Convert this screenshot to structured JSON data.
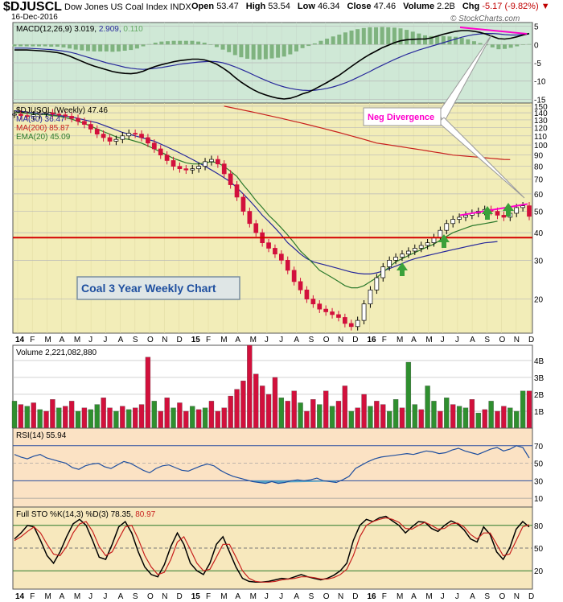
{
  "header": {
    "symbol": "$DJUSCL",
    "name": "Dow Jones US Coal Index INDX",
    "date": "16-Dec-2016",
    "open_label": "Open",
    "open": "53.47",
    "high_label": "High",
    "high": "53.54",
    "low_label": "Low",
    "low": "46.34",
    "close_label": "Close",
    "close": "47.46",
    "volume_label": "Volume",
    "volume": "2.2B",
    "chg_label": "Chg",
    "chg": "-5.17 (-9.82%)",
    "chg_arrow": "▼",
    "copyright": "© StockCharts.com"
  },
  "colors": {
    "macd_bg": "#cfe8d6",
    "price_bg": "#f2edb8",
    "volume_bg": "#ffffff",
    "rsi_bg": "#fbe2c4",
    "sto_bg": "#f7e8bd",
    "up_bar": "#2f8f2f",
    "down_bar": "#d2103c",
    "ma50": "#27289b",
    "ma200": "#c8201d",
    "ema20": "#2d7a2d",
    "divergence": "#ff00cc",
    "support": "#d40000",
    "accent_blue": "#1f4f9f"
  },
  "annotations": {
    "neg_divergence": "Neg Divergence",
    "chart_title": "Coal 3 Year Weekly Chart"
  },
  "chart_data": [
    {
      "type": "line",
      "panel": "macd",
      "label": "MACD(12,26,9) 3.019, 2.909, 0.110",
      "label_parts": [
        "MACD(12,26,9)",
        "3.019",
        "2.909",
        "0.110"
      ],
      "y_ticks": [
        "5",
        "0",
        "-5",
        "-10",
        "-15"
      ],
      "ylim": [
        -16,
        6
      ],
      "series": [
        {
          "name": "MACD",
          "values": [
            -1.5,
            -1.5,
            -1.5,
            -1.6,
            -1.7,
            -1.8,
            -2.0,
            -2.2,
            -2.6,
            -3.2,
            -3.9,
            -4.6,
            -5.3,
            -5.9,
            -6.4,
            -6.9,
            -7.4,
            -7.7,
            -7.9,
            -8.0,
            -7.8,
            -7.3,
            -6.6,
            -6.0,
            -5.5,
            -5.1,
            -4.7,
            -4.4,
            -4.2,
            -4.0,
            -4.0,
            -4.2,
            -4.7,
            -5.4,
            -6.4,
            -7.6,
            -9.0,
            -10.3,
            -11.4,
            -12.4,
            -13.2,
            -13.8,
            -14.3,
            -14.7,
            -14.9,
            -14.7,
            -14.2,
            -13.5,
            -13.0,
            -12.2,
            -11.3,
            -10.4,
            -9.4,
            -8.4,
            -7.2,
            -6.0,
            -4.8,
            -3.7,
            -2.7,
            -1.8,
            -0.9,
            -0.2,
            0.5,
            1.0,
            1.3,
            1.4,
            1.5,
            1.5,
            1.8,
            2.3,
            2.8,
            3.2,
            3.6,
            3.8,
            3.8,
            3.6,
            3.3,
            2.8,
            2.2,
            1.6,
            1.5,
            1.7,
            2.1,
            2.6,
            3.0
          ]
        },
        {
          "name": "Signal",
          "values": [
            -1.0,
            -1.0,
            -1.0,
            -1.1,
            -1.2,
            -1.3,
            -1.4,
            -1.6,
            -1.8,
            -2.1,
            -2.5,
            -3.0,
            -3.5,
            -4.0,
            -4.5,
            -5.0,
            -5.4,
            -5.8,
            -6.2,
            -6.5,
            -6.7,
            -6.8,
            -6.7,
            -6.5,
            -6.3,
            -6.0,
            -5.7,
            -5.4,
            -5.2,
            -5.0,
            -4.8,
            -4.7,
            -4.6,
            -4.7,
            -5.0,
            -5.5,
            -6.1,
            -6.8,
            -7.5,
            -8.3,
            -9.1,
            -9.8,
            -10.5,
            -11.1,
            -11.6,
            -12.0,
            -12.3,
            -12.5,
            -12.6,
            -12.5,
            -12.3,
            -12.0,
            -11.6,
            -11.1,
            -10.5,
            -9.8,
            -9.0,
            -8.2,
            -7.4,
            -6.5,
            -5.7,
            -4.9,
            -4.1,
            -3.4,
            -2.7,
            -2.1,
            -1.5,
            -1.0,
            -0.5,
            0.0,
            0.5,
            1.0,
            1.5,
            2.0,
            2.4,
            2.7,
            2.9,
            3.0,
            3.0,
            2.9,
            2.7,
            2.6,
            2.6,
            2.7,
            2.9
          ]
        }
      ]
    },
    {
      "type": "line",
      "panel": "price",
      "label": "$DJUSCL (Weekly) 47.46",
      "legend": [
        {
          "name": "MA(50)",
          "value": "36.47"
        },
        {
          "name": "MA(200)",
          "value": "85.87"
        },
        {
          "name": "EMA(20)",
          "value": "45.09"
        }
      ],
      "y_ticks": [
        "150",
        "140",
        "130",
        "120",
        "110",
        "100",
        "90",
        "80",
        "70",
        "60",
        "50",
        "40",
        "30",
        "20"
      ],
      "scale": "log",
      "ylim": [
        14,
        155
      ],
      "series": [
        {
          "name": "Price",
          "values": [
            138,
            136,
            135,
            137,
            139,
            140,
            138,
            137,
            135,
            132,
            128,
            124,
            118,
            112,
            108,
            104,
            106,
            110,
            113,
            112,
            108,
            102,
            96,
            90,
            85,
            80,
            78,
            77,
            78,
            80,
            84,
            86,
            82,
            74,
            66,
            58,
            50,
            44,
            40,
            36,
            34,
            32,
            30,
            27,
            24,
            22,
            20,
            19,
            18,
            17.5,
            17,
            16.5,
            15.5,
            15,
            16,
            19,
            22,
            25,
            28,
            30,
            31,
            32,
            33,
            34,
            35,
            36,
            38,
            41,
            44,
            46,
            47,
            48,
            49,
            50,
            51,
            50,
            48,
            47,
            49,
            52,
            53,
            47.46
          ]
        },
        {
          "name": "MA(50)",
          "values": [
            143,
            142,
            141,
            140,
            139,
            138,
            137,
            136,
            135,
            134,
            132,
            130,
            128,
            126,
            123,
            120,
            117,
            114,
            112,
            110,
            108,
            106,
            104,
            101,
            98,
            95,
            92,
            89,
            86,
            83,
            80,
            77,
            74,
            71,
            68,
            64,
            60,
            56,
            52,
            48,
            45,
            42,
            39,
            36,
            34,
            32,
            30.5,
            29.5,
            29,
            28.5,
            28,
            27.5,
            27,
            26.5,
            26.2,
            26,
            26,
            26.3,
            26.8,
            27.5,
            28.2,
            29,
            29.8,
            30.5,
            31,
            31.5,
            32,
            32.5,
            33,
            33.5,
            34,
            34.5,
            35,
            35.5,
            36,
            36.2,
            36.47
          ]
        },
        {
          "name": "MA(200)",
          "values": [
            null,
            null,
            null,
            null,
            null,
            null,
            null,
            null,
            null,
            null,
            null,
            null,
            null,
            null,
            null,
            null,
            null,
            null,
            null,
            null,
            null,
            null,
            null,
            null,
            null,
            null,
            null,
            null,
            null,
            null,
            null,
            null,
            null,
            150,
            148,
            146,
            144,
            142,
            140,
            138,
            136,
            134,
            132,
            130,
            128,
            126,
            124,
            122,
            120,
            118,
            116,
            114,
            112,
            110,
            108,
            106,
            104,
            102,
            101,
            100,
            99,
            98,
            97,
            96,
            95,
            94,
            93,
            92,
            91,
            90,
            89.5,
            89,
            88.5,
            88,
            87.5,
            87,
            86.5,
            86,
            85.87
          ]
        },
        {
          "name": "EMA(20)",
          "values": [
            141,
            140,
            139,
            138,
            138,
            137,
            136,
            135,
            133,
            131,
            128,
            125,
            122,
            118,
            115,
            112,
            109,
            107,
            106,
            104,
            102,
            99,
            96,
            93,
            90,
            87,
            85,
            83,
            82,
            82,
            83,
            84,
            83,
            80,
            76,
            72,
            66,
            61,
            56,
            52,
            48,
            45,
            42,
            39,
            36,
            33,
            31,
            29,
            27,
            26,
            25,
            24,
            23,
            22.5,
            22.5,
            23,
            24,
            25,
            26.5,
            28,
            29.5,
            30.5,
            31.5,
            32.5,
            33.5,
            34.5,
            35.5,
            37,
            38.5,
            40,
            41,
            42,
            43,
            43.5,
            44,
            44.5,
            45.09
          ]
        }
      ],
      "support_level": 38,
      "divergence_line": [
        {
          "x": "2016-07",
          "y": 48
        },
        {
          "x": "2016-12",
          "y": 54
        }
      ]
    },
    {
      "type": "bar",
      "panel": "volume",
      "label": "Volume 2,221,082,880",
      "y_ticks": [
        "4B",
        "3B",
        "2B",
        "1B"
      ],
      "ylim": [
        0,
        4.9
      ],
      "values": [
        1.6,
        1.4,
        1.3,
        1.5,
        1.1,
        1.0,
        1.7,
        1.2,
        1.3,
        1.6,
        1.0,
        1.2,
        1.1,
        1.4,
        1.8,
        1.2,
        1.0,
        1.3,
        1.1,
        1.2,
        1.4,
        4.2,
        1.6,
        1.0,
        1.8,
        1.2,
        1.5,
        1.0,
        1.3,
        1.1,
        1.2,
        1.6,
        1.0,
        1.2,
        1.9,
        2.3,
        2.8,
        4.9,
        3.2,
        2.5,
        2.0,
        3.0,
        1.8,
        1.6,
        2.2,
        1.5,
        1.0,
        1.7,
        1.4,
        2.2,
        1.3,
        1.6,
        2.5,
        1.0,
        1.2,
        2.0,
        1.3,
        1.6,
        1.4,
        1.0,
        1.7,
        1.2,
        3.9,
        1.4,
        1.1,
        2.5,
        1.6,
        1.0,
        1.8,
        1.4,
        1.3,
        1.2,
        1.7,
        0.9,
        1.1,
        1.6,
        1.0,
        1.3,
        1.2,
        1.0,
        2.2,
        2.2
      ],
      "up": [
        1,
        0,
        1,
        0,
        1,
        0,
        0,
        1,
        0,
        0,
        1,
        0,
        1,
        1,
        0,
        0,
        1,
        0,
        1,
        0,
        0,
        0,
        1,
        0,
        0,
        1,
        0,
        0,
        1,
        0,
        1,
        0,
        0,
        0,
        0,
        0,
        0,
        0,
        0,
        0,
        0,
        0,
        1,
        0,
        0,
        1,
        0,
        0,
        1,
        0,
        1,
        0,
        0,
        1,
        0,
        0,
        1,
        0,
        0,
        1,
        1,
        0,
        1,
        1,
        0,
        1,
        1,
        0,
        1,
        0,
        1,
        1,
        0,
        1,
        0,
        1,
        0,
        0,
        1,
        1,
        1,
        0
      ]
    },
    {
      "type": "line",
      "panel": "rsi",
      "label": "RSI(14) 55.94",
      "y_ticks": [
        "70",
        "50",
        "30",
        "10"
      ],
      "ylim": [
        0,
        90
      ],
      "values": [
        60,
        57,
        55,
        58,
        60,
        56,
        54,
        52,
        50,
        45,
        43,
        47,
        49,
        50,
        46,
        44,
        48,
        52,
        50,
        46,
        42,
        39,
        44,
        47,
        48,
        45,
        42,
        41,
        44,
        47,
        49,
        47,
        42,
        38,
        35,
        33,
        31,
        29,
        28,
        27,
        29,
        27,
        28,
        30,
        31,
        30,
        31,
        33,
        30,
        29,
        28,
        31,
        35,
        44,
        48,
        52,
        55,
        57,
        58,
        59,
        60,
        61,
        60,
        62,
        64,
        63,
        61,
        62,
        65,
        67,
        64,
        62,
        60,
        63,
        66,
        68,
        64,
        66,
        70,
        68,
        56
      ]
    },
    {
      "type": "line",
      "panel": "stochastic",
      "label": "Full STO %K(14,3) %D(3) 78.35, 80.97",
      "label_parts": [
        "Full STO %K(14,3) %D(3)",
        "78.35",
        "80.97"
      ],
      "y_ticks": [
        "80",
        "50",
        "20"
      ],
      "ylim": [
        0,
        100
      ],
      "series": [
        {
          "name": "%K",
          "values": [
            62,
            70,
            80,
            78,
            60,
            40,
            30,
            45,
            65,
            82,
            88,
            80,
            60,
            38,
            35,
            55,
            78,
            85,
            70,
            45,
            25,
            15,
            12,
            28,
            52,
            70,
            55,
            30,
            20,
            15,
            30,
            55,
            65,
            45,
            25,
            10,
            6,
            5,
            5,
            6,
            8,
            10,
            9,
            12,
            15,
            12,
            10,
            8,
            10,
            14,
            20,
            30,
            60,
            80,
            88,
            85,
            90,
            92,
            86,
            80,
            70,
            78,
            85,
            84,
            76,
            72,
            80,
            86,
            82,
            74,
            62,
            58,
            78,
            68,
            45,
            35,
            50,
            75,
            85,
            78
          ]
        },
        {
          "name": "%D",
          "values": [
            60,
            65,
            72,
            78,
            70,
            55,
            42,
            40,
            52,
            70,
            82,
            85,
            72,
            52,
            40,
            45,
            62,
            78,
            80,
            62,
            40,
            25,
            15,
            18,
            35,
            58,
            65,
            48,
            30,
            20,
            22,
            38,
            55,
            55,
            38,
            20,
            10,
            6,
            5,
            5,
            6,
            8,
            9,
            10,
            12,
            12,
            11,
            9,
            9,
            11,
            15,
            22,
            40,
            65,
            80,
            85,
            88,
            90,
            88,
            84,
            76,
            75,
            80,
            84,
            80,
            75,
            76,
            82,
            83,
            78,
            68,
            62,
            70,
            70,
            55,
            40,
            42,
            60,
            78,
            80.97
          ]
        }
      ]
    },
    {
      "type": "line",
      "panel": "x-axis",
      "x_tick_labels": [
        "14",
        "F",
        "M",
        "A",
        "M",
        "J",
        "J",
        "A",
        "S",
        "O",
        "N",
        "D",
        "15",
        "F",
        "M",
        "A",
        "M",
        "J",
        "J",
        "A",
        "S",
        "O",
        "N",
        "D",
        "16",
        "F",
        "M",
        "A",
        "M",
        "J",
        "J",
        "A",
        "S",
        "O",
        "N",
        "D"
      ]
    }
  ]
}
